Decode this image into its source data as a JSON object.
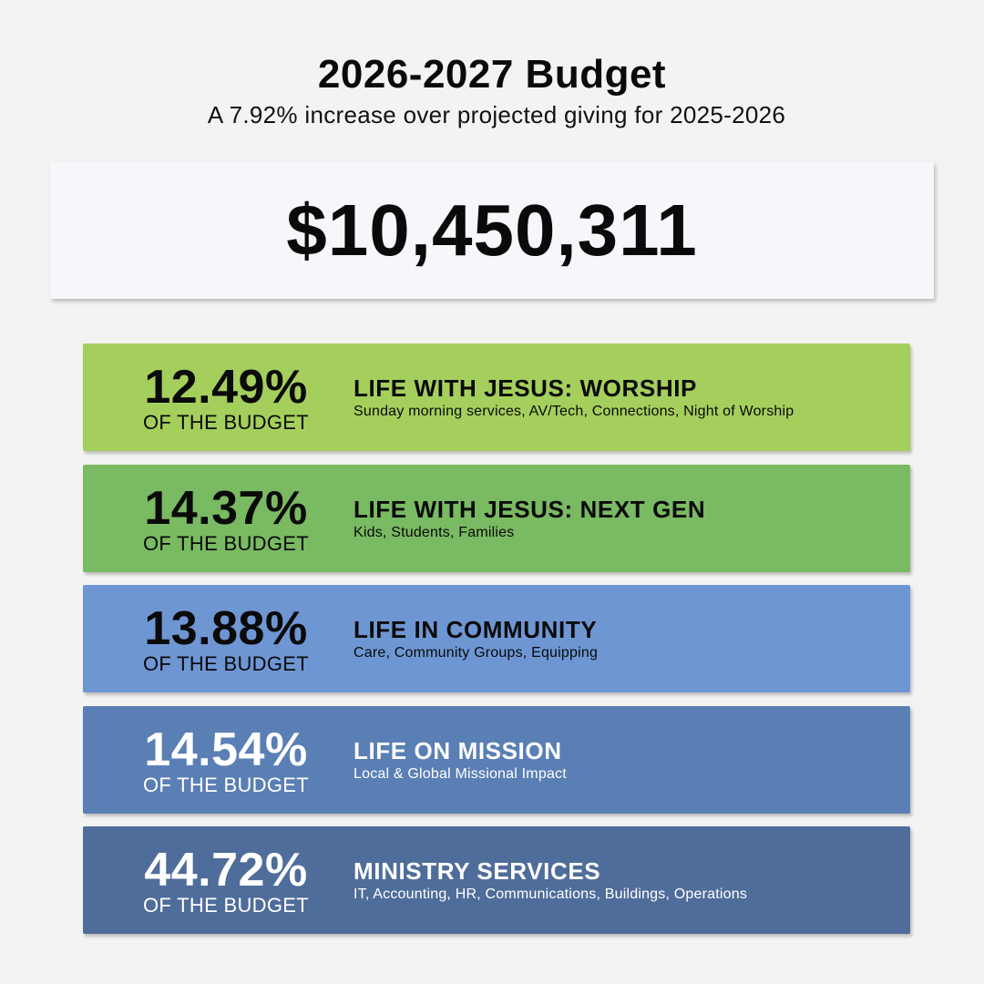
{
  "header": {
    "title": "2026-2027 Budget",
    "subtitle": "A 7.92% increase over projected giving for 2025-2026"
  },
  "total": {
    "amount": "$10,450,311"
  },
  "categories": [
    {
      "percent": "12.49%",
      "percent_caption": "OF THE BUDGET",
      "name": "LIFE WITH JESUS: WORSHIP",
      "description": "Sunday morning services, AV/Tech, Connections, Night of Worship",
      "color": "#a5cf5d"
    },
    {
      "percent": "14.37%",
      "percent_caption": "OF THE BUDGET",
      "name": "LIFE WITH JESUS: NEXT GEN",
      "description": "Kids, Students, Families",
      "color": "#7aba62"
    },
    {
      "percent": "13.88%",
      "percent_caption": "OF THE BUDGET",
      "name": "LIFE IN COMMUNITY",
      "description": "Care, Community Groups, Equipping",
      "color": "#6e96d3"
    },
    {
      "percent": "14.54%",
      "percent_caption": "OF THE BUDGET",
      "name": "LIFE ON MISSION",
      "description": "Local & Global Missional Impact",
      "color": "#5a7fb4"
    },
    {
      "percent": "44.72%",
      "percent_caption": "OF THE BUDGET",
      "name": "MINISTRY SERVICES",
      "description": "IT, Accounting, HR, Communications, Buildings, Operations",
      "color": "#4f6d9a"
    }
  ]
}
